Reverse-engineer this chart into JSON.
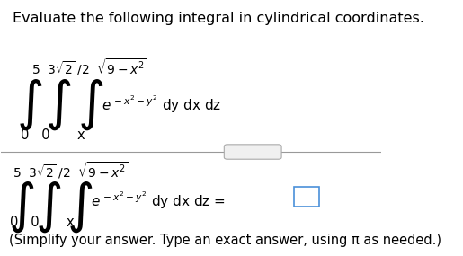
{
  "title": "Evaluate the following integral in cylindrical coordinates.",
  "title_fontsize": 11.5,
  "bg_color": "#ffffff",
  "text_color": "#000000",
  "fig_width": 5.15,
  "fig_height": 2.85,
  "dpi": 100,
  "footer": "(Simplify your answer. Type an exact answer, using π as needed.)"
}
